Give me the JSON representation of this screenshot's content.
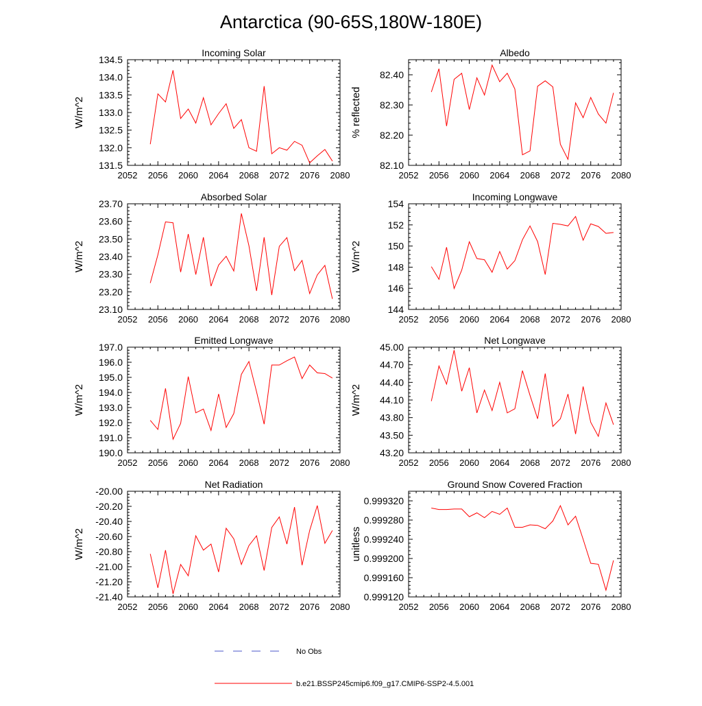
{
  "title": "Antarctica (90-65S,180W-180E)",
  "colors": {
    "model": "#ff0000",
    "obs": "#4a55c8",
    "axis": "#000000"
  },
  "legend": {
    "obs_label": "No Obs",
    "model_label": "b.e21.BSSP245cmip6.f09_g17.CMIP6-SSP2-4.5.001"
  },
  "chart_data": [
    {
      "type": "line",
      "title": "Incoming Solar",
      "xlabel": "",
      "ylabel": "W/m^2",
      "xlim": [
        2052,
        2080
      ],
      "xticks": [
        "2052",
        "2056",
        "2060",
        "2064",
        "2068",
        "2072",
        "2076",
        "2080"
      ],
      "ylim": [
        131.5,
        134.5
      ],
      "yticks": [
        "131.5",
        "132.0",
        "132.5",
        "133.0",
        "133.5",
        "134.0",
        "134.5"
      ],
      "x": [
        2055,
        2056,
        2057,
        2058,
        2059,
        2060,
        2061,
        2062,
        2063,
        2064,
        2065,
        2066,
        2067,
        2068,
        2069,
        2070,
        2071,
        2072,
        2073,
        2074,
        2075,
        2076,
        2077,
        2078,
        2079
      ],
      "series": [
        {
          "name": "b.e21.BSSP245cmip6.f09_g17.CMIP6-SSP2-4.5.001",
          "values": [
            132.1,
            133.53,
            133.3,
            134.2,
            132.83,
            133.1,
            132.7,
            133.42,
            132.65,
            132.97,
            133.25,
            132.55,
            132.8,
            132.0,
            131.9,
            133.75,
            131.83,
            132.0,
            131.93,
            132.18,
            132.07,
            131.57,
            131.77,
            131.95,
            131.62
          ]
        }
      ]
    },
    {
      "type": "line",
      "title": "Albedo",
      "xlabel": "",
      "ylabel": "% reflected",
      "xlim": [
        2052,
        2080
      ],
      "xticks": [
        "2052",
        "2056",
        "2060",
        "2064",
        "2068",
        "2072",
        "2076",
        "2080"
      ],
      "ylim": [
        82.1,
        82.45
      ],
      "yticks": [
        "82.10",
        "82.20",
        "82.30",
        "82.40"
      ],
      "x": [
        2055,
        2056,
        2057,
        2058,
        2059,
        2060,
        2061,
        2062,
        2063,
        2064,
        2065,
        2066,
        2067,
        2068,
        2069,
        2070,
        2071,
        2072,
        2073,
        2074,
        2075,
        2076,
        2077,
        2078,
        2079
      ],
      "series": [
        {
          "name": "b.e21.BSSP245cmip6.f09_g17.CMIP6-SSP2-4.5.001",
          "values": [
            82.343,
            82.42,
            82.23,
            82.385,
            82.405,
            82.285,
            82.39,
            82.333,
            82.432,
            82.377,
            82.405,
            82.353,
            82.135,
            82.148,
            82.362,
            82.38,
            82.36,
            82.17,
            82.12,
            82.307,
            82.258,
            82.325,
            82.27,
            82.24,
            82.34
          ]
        }
      ]
    },
    {
      "type": "line",
      "title": "Absorbed Solar",
      "xlabel": "",
      "ylabel": "W/m^2",
      "xlim": [
        2052,
        2080
      ],
      "xticks": [
        "2052",
        "2056",
        "2060",
        "2064",
        "2068",
        "2072",
        "2076",
        "2080"
      ],
      "ylim": [
        23.1,
        23.7
      ],
      "yticks": [
        "23.10",
        "23.20",
        "23.30",
        "23.40",
        "23.50",
        "23.60",
        "23.70"
      ],
      "x": [
        2055,
        2056,
        2057,
        2058,
        2059,
        2060,
        2061,
        2062,
        2063,
        2064,
        2065,
        2066,
        2067,
        2068,
        2069,
        2070,
        2071,
        2072,
        2073,
        2074,
        2075,
        2076,
        2077,
        2078,
        2079
      ],
      "series": [
        {
          "name": "b.e21.BSSP245cmip6.f09_g17.CMIP6-SSP2-4.5.001",
          "values": [
            23.25,
            23.41,
            23.597,
            23.592,
            23.312,
            23.528,
            23.298,
            23.51,
            23.232,
            23.352,
            23.402,
            23.318,
            23.645,
            23.462,
            23.205,
            23.51,
            23.182,
            23.458,
            23.508,
            23.32,
            23.378,
            23.19,
            23.296,
            23.35,
            23.16
          ]
        }
      ]
    },
    {
      "type": "line",
      "title": "Incoming Longwave",
      "xlabel": "",
      "ylabel": "W/m^2",
      "xlim": [
        2052,
        2080
      ],
      "xticks": [
        "2052",
        "2056",
        "2060",
        "2064",
        "2068",
        "2072",
        "2076",
        "2080"
      ],
      "ylim": [
        144,
        154
      ],
      "yticks": [
        "144",
        "146",
        "148",
        "150",
        "152",
        "154"
      ],
      "x": [
        2055,
        2056,
        2057,
        2058,
        2059,
        2060,
        2061,
        2062,
        2063,
        2064,
        2065,
        2066,
        2067,
        2068,
        2069,
        2070,
        2071,
        2072,
        2073,
        2074,
        2075,
        2076,
        2077,
        2078,
        2079
      ],
      "series": [
        {
          "name": "b.e21.BSSP245cmip6.f09_g17.CMIP6-SSP2-4.5.001",
          "values": [
            148.05,
            146.85,
            149.88,
            145.98,
            147.72,
            150.4,
            148.82,
            148.7,
            147.52,
            149.48,
            147.82,
            148.62,
            150.6,
            151.9,
            150.42,
            147.3,
            152.15,
            152.05,
            151.9,
            152.8,
            150.55,
            152.1,
            151.85,
            151.2,
            151.28
          ]
        }
      ]
    },
    {
      "type": "line",
      "title": "Emitted Longwave",
      "xlabel": "",
      "ylabel": "W/m^2",
      "xlim": [
        2052,
        2080
      ],
      "xticks": [
        "2052",
        "2056",
        "2060",
        "2064",
        "2068",
        "2072",
        "2076",
        "2080"
      ],
      "ylim": [
        190.0,
        197.0
      ],
      "yticks": [
        "190.0",
        "191.0",
        "192.0",
        "193.0",
        "194.0",
        "195.0",
        "196.0",
        "197.0"
      ],
      "x": [
        2055,
        2056,
        2057,
        2058,
        2059,
        2060,
        2061,
        2062,
        2063,
        2064,
        2065,
        2066,
        2067,
        2068,
        2069,
        2070,
        2071,
        2072,
        2073,
        2074,
        2075,
        2076,
        2077,
        2078,
        2079
      ],
      "series": [
        {
          "name": "b.e21.BSSP245cmip6.f09_g17.CMIP6-SSP2-4.5.001",
          "values": [
            192.15,
            191.55,
            194.27,
            190.9,
            191.95,
            195.05,
            192.65,
            192.9,
            191.48,
            193.9,
            191.68,
            192.6,
            195.2,
            196.05,
            194.05,
            191.9,
            195.82,
            195.82,
            196.1,
            196.35,
            194.92,
            195.82,
            195.3,
            195.25,
            194.95
          ]
        }
      ]
    },
    {
      "type": "line",
      "title": "Net Longwave",
      "xlabel": "",
      "ylabel": "W/m^2",
      "xlim": [
        2052,
        2080
      ],
      "xticks": [
        "2052",
        "2056",
        "2060",
        "2064",
        "2068",
        "2072",
        "2076",
        "2080"
      ],
      "ylim": [
        43.2,
        45.0
      ],
      "yticks": [
        "43.20",
        "43.50",
        "43.80",
        "44.10",
        "44.40",
        "44.70",
        "45.00"
      ],
      "x": [
        2055,
        2056,
        2057,
        2058,
        2059,
        2060,
        2061,
        2062,
        2063,
        2064,
        2065,
        2066,
        2067,
        2068,
        2069,
        2070,
        2071,
        2072,
        2073,
        2074,
        2075,
        2076,
        2077,
        2078,
        2079
      ],
      "series": [
        {
          "name": "b.e21.BSSP245cmip6.f09_g17.CMIP6-SSP2-4.5.001",
          "values": [
            44.08,
            44.68,
            44.37,
            44.95,
            44.25,
            44.65,
            43.88,
            44.27,
            43.92,
            44.4,
            43.88,
            43.95,
            44.6,
            44.18,
            43.78,
            44.55,
            43.65,
            43.78,
            44.2,
            43.52,
            44.33,
            43.72,
            43.48,
            44.05,
            43.68
          ]
        }
      ]
    },
    {
      "type": "line",
      "title": "Net Radiation",
      "xlabel": "",
      "ylabel": "W/m^2",
      "xlim": [
        2052,
        2080
      ],
      "xticks": [
        "2052",
        "2056",
        "2060",
        "2064",
        "2068",
        "2072",
        "2076",
        "2080"
      ],
      "ylim": [
        -21.4,
        -20.0
      ],
      "yticks": [
        "-21.40",
        "-21.20",
        "-21.00",
        "-20.80",
        "-20.60",
        "-20.40",
        "-20.20",
        "-20.00"
      ],
      "x": [
        2055,
        2056,
        2057,
        2058,
        2059,
        2060,
        2061,
        2062,
        2063,
        2064,
        2065,
        2066,
        2067,
        2068,
        2069,
        2070,
        2071,
        2072,
        2073,
        2074,
        2075,
        2076,
        2077,
        2078,
        2079
      ],
      "series": [
        {
          "name": "b.e21.BSSP245cmip6.f09_g17.CMIP6-SSP2-4.5.001",
          "values": [
            -20.83,
            -21.28,
            -20.78,
            -21.36,
            -20.97,
            -21.12,
            -20.59,
            -20.78,
            -20.7,
            -21.07,
            -20.49,
            -20.63,
            -20.97,
            -20.72,
            -20.59,
            -21.05,
            -20.48,
            -20.34,
            -20.7,
            -20.21,
            -20.98,
            -20.52,
            -20.19,
            -20.69,
            -20.52
          ]
        }
      ]
    },
    {
      "type": "line",
      "title": "Ground Snow Covered Fraction",
      "xlabel": "",
      "ylabel": "unitless",
      "xlim": [
        2052,
        2080
      ],
      "xticks": [
        "2052",
        "2056",
        "2060",
        "2064",
        "2068",
        "2072",
        "2076",
        "2080"
      ],
      "ylim": [
        0.99912,
        0.99934
      ],
      "yticks": [
        "0.999120",
        "0.999160",
        "0.999200",
        "0.999240",
        "0.999280",
        "0.999320"
      ],
      "x": [
        2055,
        2056,
        2057,
        2058,
        2059,
        2060,
        2061,
        2062,
        2063,
        2064,
        2065,
        2066,
        2067,
        2068,
        2069,
        2070,
        2071,
        2072,
        2073,
        2074,
        2075,
        2076,
        2077,
        2078,
        2079
      ],
      "series": [
        {
          "name": "b.e21.BSSP245cmip6.f09_g17.CMIP6-SSP2-4.5.001",
          "values": [
            0.999305,
            0.999302,
            0.999302,
            0.999303,
            0.999303,
            0.999287,
            0.999295,
            0.999285,
            0.999298,
            0.999292,
            0.999305,
            0.999265,
            0.999265,
            0.99927,
            0.999269,
            0.999262,
            0.999278,
            0.99931,
            0.99927,
            0.999288,
            0.99924,
            0.99919,
            0.999188,
            0.999134,
            0.999196
          ]
        }
      ]
    }
  ]
}
